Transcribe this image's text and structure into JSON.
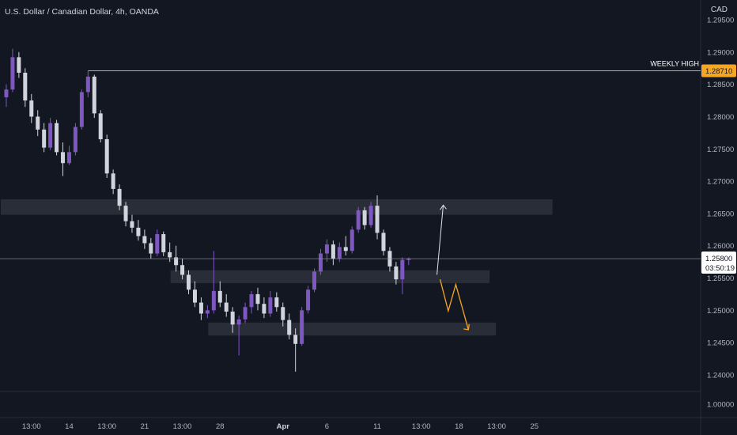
{
  "header": {
    "title": "U.S. Dollar / Canadian Dollar, 4h, OANDA",
    "currency": "CAD"
  },
  "colors": {
    "background": "#131722",
    "bull": "#7e57c2",
    "bear": "#d1d4dc",
    "zone": "#2a2e39",
    "weekly_high_line": "#f5a623",
    "current_price_line": "#9598a1",
    "arrow_up": "#e0e3eb",
    "arrow_down": "#f5a623"
  },
  "chart_data": {
    "type": "candlestick",
    "symbol": "USD/CAD",
    "interval": "4h",
    "exchange": "OANDA",
    "y_axis": {
      "range": [
        0.99,
        1.2975
      ],
      "ticks": [
        "1.29500",
        "1.29000",
        "1.28500",
        "1.28000",
        "1.27500",
        "1.27000",
        "1.26500",
        "1.26000",
        "1.25500",
        "1.25000",
        "1.24500",
        "1.24000",
        "1.00000"
      ],
      "tick_values": [
        1.295,
        1.29,
        1.285,
        1.28,
        1.275,
        1.27,
        1.265,
        1.26,
        1.255,
        1.25,
        1.245,
        1.24,
        1.0
      ]
    },
    "x_axis": {
      "ticks": [
        {
          "label": "13:00",
          "bold": false,
          "bar": 4
        },
        {
          "label": "14",
          "bold": false,
          "bar": 10
        },
        {
          "label": "13:00",
          "bold": false,
          "bar": 16
        },
        {
          "label": "21",
          "bold": false,
          "bar": 22
        },
        {
          "label": "13:00",
          "bold": false,
          "bar": 28
        },
        {
          "label": "28",
          "bold": false,
          "bar": 34
        },
        {
          "label": "Apr",
          "bold": true,
          "bar": 44
        },
        {
          "label": "6",
          "bold": false,
          "bar": 51
        },
        {
          "label": "11",
          "bold": false,
          "bar": 59
        },
        {
          "label": "13:00",
          "bold": false,
          "bar": 66
        },
        {
          "label": "18",
          "bold": false,
          "bar": 72
        },
        {
          "label": "13:00",
          "bold": false,
          "bar": 78
        },
        {
          "label": "25",
          "bold": false,
          "bar": 84
        }
      ]
    },
    "weekly_high": {
      "label": "WEEKLY HIGH",
      "value": 1.2871,
      "value_label": "1.28710",
      "start_bar": 13
    },
    "current_price": {
      "value": 1.258,
      "value_label": "1.25800",
      "countdown": "03:50:19"
    },
    "zones": [
      {
        "from_bar": 0,
        "to_bar": 87,
        "low": 1.2648,
        "high": 1.2672
      },
      {
        "from_bar": 27,
        "to_bar": 77,
        "low": 1.2542,
        "high": 1.2562
      },
      {
        "from_bar": 33,
        "to_bar": 78,
        "low": 1.2461,
        "high": 1.2481
      }
    ],
    "projections": {
      "up_path": [
        [
          69,
          1.2555
        ],
        [
          70,
          1.2663
        ]
      ],
      "down_path": [
        [
          69.5,
          1.2548
        ],
        [
          70.8,
          1.2499
        ],
        [
          72,
          1.254
        ],
        [
          74,
          1.247
        ]
      ]
    },
    "candles": [
      [
        1.283,
        1.285,
        1.2815,
        1.2842
      ],
      [
        1.2842,
        1.2905,
        1.2838,
        1.2892
      ],
      [
        1.2892,
        1.29,
        1.286,
        1.2868
      ],
      [
        1.2868,
        1.2875,
        1.2815,
        1.2825
      ],
      [
        1.2825,
        1.2835,
        1.279,
        1.28
      ],
      [
        1.28,
        1.281,
        1.277,
        1.278
      ],
      [
        1.278,
        1.279,
        1.2745,
        1.2752
      ],
      [
        1.2752,
        1.2798,
        1.2748,
        1.279
      ],
      [
        1.279,
        1.2795,
        1.274,
        1.2745
      ],
      [
        1.2745,
        1.276,
        1.2708,
        1.2728
      ],
      [
        1.2728,
        1.2755,
        1.2725,
        1.2745
      ],
      [
        1.2745,
        1.279,
        1.274,
        1.2784
      ],
      [
        1.2784,
        1.2842,
        1.278,
        1.2838
      ],
      [
        1.2838,
        1.2871,
        1.283,
        1.2862
      ],
      [
        1.2862,
        1.2865,
        1.2798,
        1.2805
      ],
      [
        1.2805,
        1.281,
        1.276,
        1.2765
      ],
      [
        1.2765,
        1.2772,
        1.2705,
        1.2712
      ],
      [
        1.2712,
        1.2718,
        1.268,
        1.2688
      ],
      [
        1.2688,
        1.2695,
        1.2655,
        1.2662
      ],
      [
        1.2662,
        1.2668,
        1.263,
        1.2638
      ],
      [
        1.2638,
        1.2648,
        1.262,
        1.2628
      ],
      [
        1.2628,
        1.264,
        1.2608,
        1.2615
      ],
      [
        1.2615,
        1.2625,
        1.2595,
        1.2604
      ],
      [
        1.2604,
        1.2612,
        1.258,
        1.2588
      ],
      [
        1.2588,
        1.2625,
        1.2584,
        1.2618
      ],
      [
        1.2618,
        1.2622,
        1.2584,
        1.259
      ],
      [
        1.259,
        1.2605,
        1.2575,
        1.2582
      ],
      [
        1.2582,
        1.26,
        1.256,
        1.257
      ],
      [
        1.257,
        1.258,
        1.2548,
        1.2555
      ],
      [
        1.2555,
        1.2562,
        1.2525,
        1.2532
      ],
      [
        1.2532,
        1.2545,
        1.2505,
        1.2512
      ],
      [
        1.2512,
        1.252,
        1.2485,
        1.2495
      ],
      [
        1.2495,
        1.2508,
        1.2488,
        1.25
      ],
      [
        1.25,
        1.2592,
        1.2495,
        1.253
      ],
      [
        1.253,
        1.2545,
        1.2505,
        1.2512
      ],
      [
        1.2512,
        1.2525,
        1.249,
        1.2498
      ],
      [
        1.2498,
        1.2505,
        1.2465,
        1.2478
      ],
      [
        1.2478,
        1.2492,
        1.243,
        1.2486
      ],
      [
        1.2486,
        1.2512,
        1.248,
        1.2505
      ],
      [
        1.2505,
        1.253,
        1.2495,
        1.2525
      ],
      [
        1.2525,
        1.2535,
        1.25,
        1.251
      ],
      [
        1.251,
        1.252,
        1.2488,
        1.2495
      ],
      [
        1.2495,
        1.253,
        1.249,
        1.252
      ],
      [
        1.252,
        1.2528,
        1.2498,
        1.2505
      ],
      [
        1.2505,
        1.2512,
        1.2475,
        1.2485
      ],
      [
        1.2485,
        1.2495,
        1.2455,
        1.2462
      ],
      [
        1.2462,
        1.2472,
        1.2405,
        1.2448
      ],
      [
        1.2448,
        1.2505,
        1.2445,
        1.25
      ],
      [
        1.25,
        1.2538,
        1.2495,
        1.2532
      ],
      [
        1.2532,
        1.2565,
        1.2528,
        1.256
      ],
      [
        1.256,
        1.2595,
        1.2555,
        1.2588
      ],
      [
        1.2588,
        1.261,
        1.2575,
        1.2602
      ],
      [
        1.2602,
        1.2608,
        1.257,
        1.258
      ],
      [
        1.258,
        1.2605,
        1.2575,
        1.2598
      ],
      [
        1.2598,
        1.2615,
        1.2585,
        1.2592
      ],
      [
        1.2592,
        1.263,
        1.2588,
        1.2625
      ],
      [
        1.2625,
        1.266,
        1.262,
        1.2655
      ],
      [
        1.2655,
        1.266,
        1.2625,
        1.2632
      ],
      [
        1.2632,
        1.2668,
        1.2628,
        1.2662
      ],
      [
        1.2662,
        1.2678,
        1.261,
        1.262
      ],
      [
        1.262,
        1.2625,
        1.2585,
        1.2592
      ],
      [
        1.2592,
        1.2598,
        1.256,
        1.2568
      ],
      [
        1.2568,
        1.2575,
        1.254,
        1.2548
      ],
      [
        1.2548,
        1.2582,
        1.2525,
        1.2578
      ],
      [
        1.2578,
        1.2582,
        1.257,
        1.258
      ]
    ]
  }
}
